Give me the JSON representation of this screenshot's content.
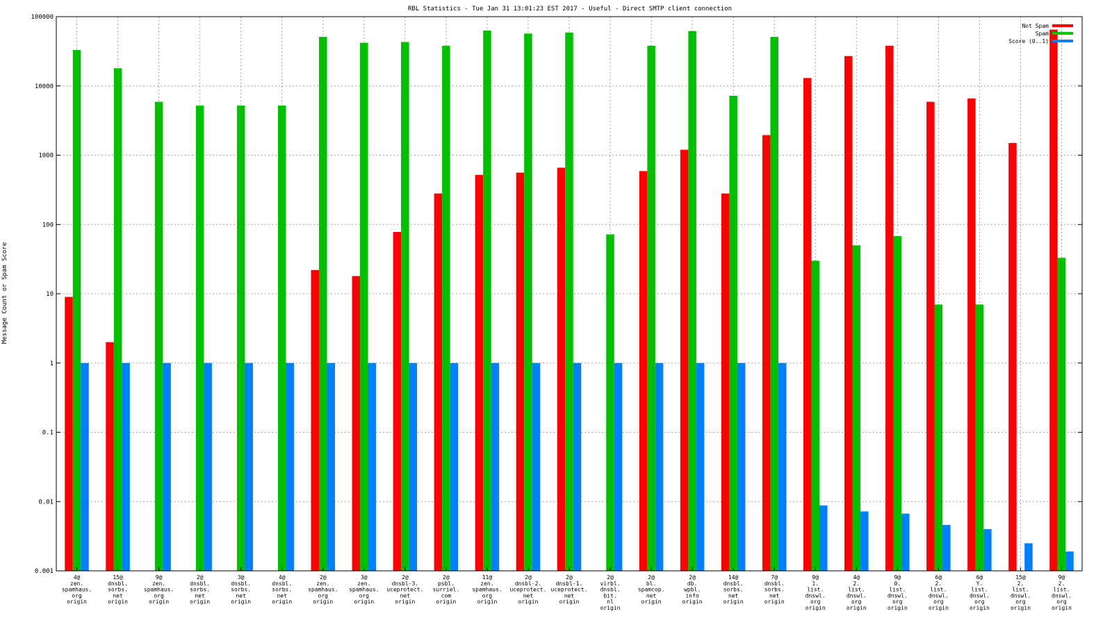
{
  "chart_data": {
    "type": "bar",
    "title": "RBL Statistics - Tue Jan 31 13:01:23 EST 2017 - Useful - Direct SMTP client connection",
    "ylabel": "Message Count or Spam Score",
    "xlabel": "",
    "y_scale": "log",
    "ylim": [
      0.001,
      100000
    ],
    "grid": true,
    "legend_position": "top-right",
    "y_ticks": [
      "0.001",
      "0.01",
      "0.1",
      "1",
      "10",
      "100",
      "1000",
      "10000",
      "100000"
    ],
    "categories": [
      [
        "4@",
        "zen.",
        "spamhaus.",
        "org",
        "origin"
      ],
      [
        "15@",
        "dnsbl.",
        "sorbs.",
        "net",
        "origin"
      ],
      [
        "9@",
        "zen.",
        "spamhaus.",
        "org",
        "origin"
      ],
      [
        "2@",
        "dnsbl.",
        "sorbs.",
        "net",
        "origin"
      ],
      [
        "3@",
        "dnsbl.",
        "sorbs.",
        "net",
        "origin"
      ],
      [
        "4@",
        "dnsbl.",
        "sorbs.",
        "net",
        "origin"
      ],
      [
        "2@",
        "zen.",
        "spamhaus.",
        "org",
        "origin"
      ],
      [
        "3@",
        "zen.",
        "spamhaus.",
        "org",
        "origin"
      ],
      [
        "2@",
        "dnsbl-3.",
        "uceprotect.",
        "net",
        "origin"
      ],
      [
        "2@",
        "psbl.",
        "surriel.",
        "com",
        "origin"
      ],
      [
        "11@",
        "zen.",
        "spamhaus.",
        "org",
        "origin"
      ],
      [
        "2@",
        "dnsbl-2.",
        "uceprotect.",
        "net",
        "origin"
      ],
      [
        "2@",
        "dnsbl-1.",
        "uceprotect.",
        "net",
        "origin"
      ],
      [
        "2@",
        "virbl.",
        "dnsbl.",
        "bit.",
        "nl",
        "origin"
      ],
      [
        "2@",
        "bl.",
        "spamcop.",
        "net",
        "origin"
      ],
      [
        "2@",
        "db.",
        "wpbl.",
        "info",
        "origin"
      ],
      [
        "14@",
        "dnsbl.",
        "sorbs.",
        "net",
        "origin"
      ],
      [
        "7@",
        "dnsbl.",
        "sorbs.",
        "net",
        "origin"
      ],
      [
        "9@",
        "1.",
        "list.",
        "dnswl.",
        "org",
        "origin"
      ],
      [
        "4@",
        "2.",
        "list.",
        "dnswl.",
        "org",
        "origin"
      ],
      [
        "9@",
        "0.",
        "list.",
        "dnswl.",
        "org",
        "origin"
      ],
      [
        "6@",
        "2.",
        "list.",
        "dnswl.",
        "org",
        "origin"
      ],
      [
        "6@",
        "Y.",
        "list.",
        "dnswl.",
        "org",
        "origin"
      ],
      [
        "15@",
        "2.",
        "list.",
        "dnswl.",
        "org",
        "origin"
      ],
      [
        "9@",
        "2.",
        "list.",
        "dnswl.",
        "org",
        "origin"
      ]
    ],
    "series": [
      {
        "name": "Not Spam",
        "color": "#ff0000",
        "values": [
          9,
          2,
          null,
          null,
          null,
          null,
          22,
          18,
          78,
          280,
          520,
          560,
          660,
          null,
          590,
          1200,
          280,
          1950,
          13000,
          27000,
          38000,
          5900,
          6600,
          1500,
          65000
        ]
      },
      {
        "name": "Spam",
        "color": "#00c000",
        "values": [
          33000,
          18000,
          5900,
          5200,
          5200,
          5200,
          51000,
          42000,
          43000,
          38000,
          63000,
          57000,
          59000,
          72,
          38000,
          62000,
          7200,
          51000,
          30,
          50,
          68,
          7,
          7,
          null,
          33
        ]
      },
      {
        "name": "Score (0..1)",
        "color": "#0080ff",
        "values": [
          1,
          1,
          1,
          1,
          1,
          1,
          1,
          1,
          1,
          1,
          1,
          1,
          1,
          1,
          1,
          1,
          1,
          1,
          0.0088,
          0.0072,
          0.0067,
          0.0046,
          0.004,
          0.0025,
          0.0019
        ]
      }
    ]
  }
}
